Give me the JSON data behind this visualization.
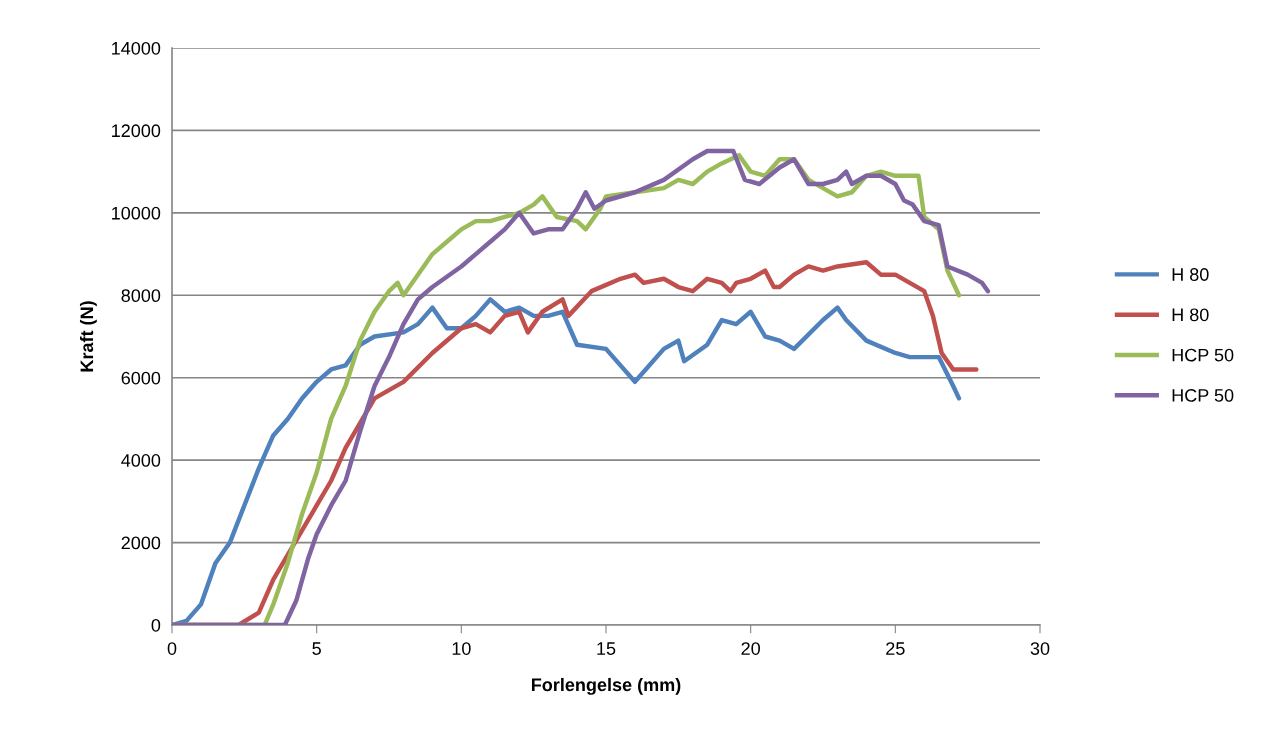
{
  "chart_data": {
    "type": "line",
    "xlabel": "Forlengelse (mm)",
    "ylabel": "Kraft (N)",
    "xlim": [
      0,
      30
    ],
    "xticks": [
      0,
      5,
      10,
      15,
      20,
      25,
      30
    ],
    "ylim": [
      0,
      14000
    ],
    "yticks": [
      0,
      2000,
      4000,
      6000,
      8000,
      10000,
      12000,
      14000
    ],
    "grid": "y",
    "legend": "right",
    "marker": "none",
    "line_style": "solid",
    "series": [
      {
        "name": "H 80",
        "color": "#4f81bd",
        "x": [
          0,
          0.5,
          1.0,
          1.5,
          2,
          2.5,
          3,
          3.5,
          4,
          4.5,
          5,
          5.5,
          6,
          6.5,
          7,
          8,
          8.5,
          9,
          9.5,
          10,
          10.5,
          11,
          11.5,
          12,
          12.5,
          13,
          13.5,
          14,
          15,
          15.5,
          16,
          17,
          17.5,
          17.7,
          18.5,
          19,
          19.5,
          20,
          20.5,
          21,
          21.5,
          22.5,
          23,
          23.3,
          24,
          25,
          25.5,
          26.5,
          27,
          27.2
        ],
        "values": [
          0,
          100,
          500,
          1500,
          2000,
          2900,
          3800,
          4600,
          5000,
          5500,
          5900,
          6200,
          6300,
          6800,
          7000,
          7100,
          7300,
          7700,
          7200,
          7200,
          7500,
          7900,
          7600,
          7700,
          7500,
          7500,
          7600,
          6800,
          6700,
          6300,
          5900,
          6700,
          6900,
          6400,
          6800,
          7400,
          7300,
          7600,
          7000,
          6900,
          6700,
          7400,
          7700,
          7400,
          6900,
          6600,
          6500,
          6500,
          5800,
          5500
        ]
      },
      {
        "name": "H 80",
        "color": "#c0504d",
        "x": [
          0,
          2.3,
          3,
          3.5,
          4,
          4.5,
          5,
          5.5,
          6,
          6.5,
          7,
          8,
          9,
          10,
          10.5,
          11,
          11.5,
          12,
          12.3,
          12.8,
          13.5,
          13.7,
          14.5,
          15.5,
          16,
          16.3,
          17,
          17.5,
          18,
          18.5,
          19,
          19.3,
          19.5,
          20,
          20.5,
          20.8,
          21,
          21.5,
          22,
          22.5,
          23,
          24,
          24.5,
          25,
          25.5,
          26,
          26.3,
          26.6,
          27,
          27.8
        ],
        "values": [
          0,
          0,
          300,
          1100,
          1700,
          2300,
          2900,
          3500,
          4300,
          4900,
          5500,
          5900,
          6600,
          7200,
          7300,
          7100,
          7500,
          7600,
          7100,
          7600,
          7900,
          7500,
          8100,
          8400,
          8500,
          8300,
          8400,
          8200,
          8100,
          8400,
          8300,
          8100,
          8300,
          8400,
          8600,
          8200,
          8200,
          8500,
          8700,
          8600,
          8700,
          8800,
          8500,
          8500,
          8300,
          8100,
          7500,
          6600,
          6200,
          6200
        ]
      },
      {
        "name": "HCP 50",
        "color": "#9bbb59",
        "x": [
          0,
          3.2,
          3.5,
          4,
          4.5,
          5,
          5.5,
          6,
          6.5,
          7,
          7.5,
          7.8,
          8,
          8.5,
          9,
          9.5,
          10,
          10.5,
          11,
          11.5,
          12,
          12.5,
          12.8,
          13.3,
          14,
          14.3,
          14.8,
          15,
          16,
          17,
          17.5,
          18,
          18.5,
          19,
          19.6,
          20,
          20.5,
          21,
          21.5,
          22,
          22.5,
          23,
          23.5,
          24,
          24.5,
          25,
          25.8,
          26,
          26.5,
          26.8,
          27.2
        ],
        "values": [
          0,
          0,
          500,
          1500,
          2700,
          3700,
          5000,
          5800,
          6900,
          7600,
          8100,
          8300,
          8000,
          8500,
          9000,
          9300,
          9600,
          9800,
          9800,
          9900,
          10000,
          10200,
          10400,
          9900,
          9800,
          9600,
          10100,
          10400,
          10500,
          10600,
          10800,
          10700,
          11000,
          11200,
          11400,
          11000,
          10900,
          11300,
          11300,
          10800,
          10600,
          10400,
          10500,
          10900,
          11000,
          10900,
          10900,
          9900,
          9600,
          8600,
          8000
        ]
      },
      {
        "name": "HCP 50",
        "color": "#8064a2",
        "x": [
          0,
          3.9,
          4.3,
          4.7,
          5,
          5.5,
          6,
          6.5,
          7,
          7.5,
          8,
          8.5,
          9,
          10,
          10.5,
          11,
          11.5,
          12,
          12.3,
          12.5,
          13,
          13.5,
          14,
          14.3,
          14.6,
          15,
          16,
          17,
          18,
          18.5,
          19,
          19.4,
          19.8,
          20.3,
          21,
          21.5,
          22,
          22.5,
          23,
          23.3,
          23.5,
          24,
          24.5,
          25,
          25.3,
          25.6,
          26,
          26.5,
          26.8,
          27.5,
          28,
          28.2
        ],
        "values": [
          0,
          0,
          600,
          1600,
          2200,
          2900,
          3500,
          4700,
          5800,
          6500,
          7300,
          7900,
          8200,
          8700,
          9000,
          9300,
          9600,
          10000,
          9700,
          9500,
          9600,
          9600,
          10100,
          10500,
          10100,
          10300,
          10500,
          10800,
          11300,
          11500,
          11500,
          11500,
          10800,
          10700,
          11100,
          11300,
          10700,
          10700,
          10800,
          11000,
          10700,
          10900,
          10900,
          10700,
          10300,
          10200,
          9800,
          9700,
          8700,
          8500,
          8300,
          8100
        ]
      }
    ]
  }
}
